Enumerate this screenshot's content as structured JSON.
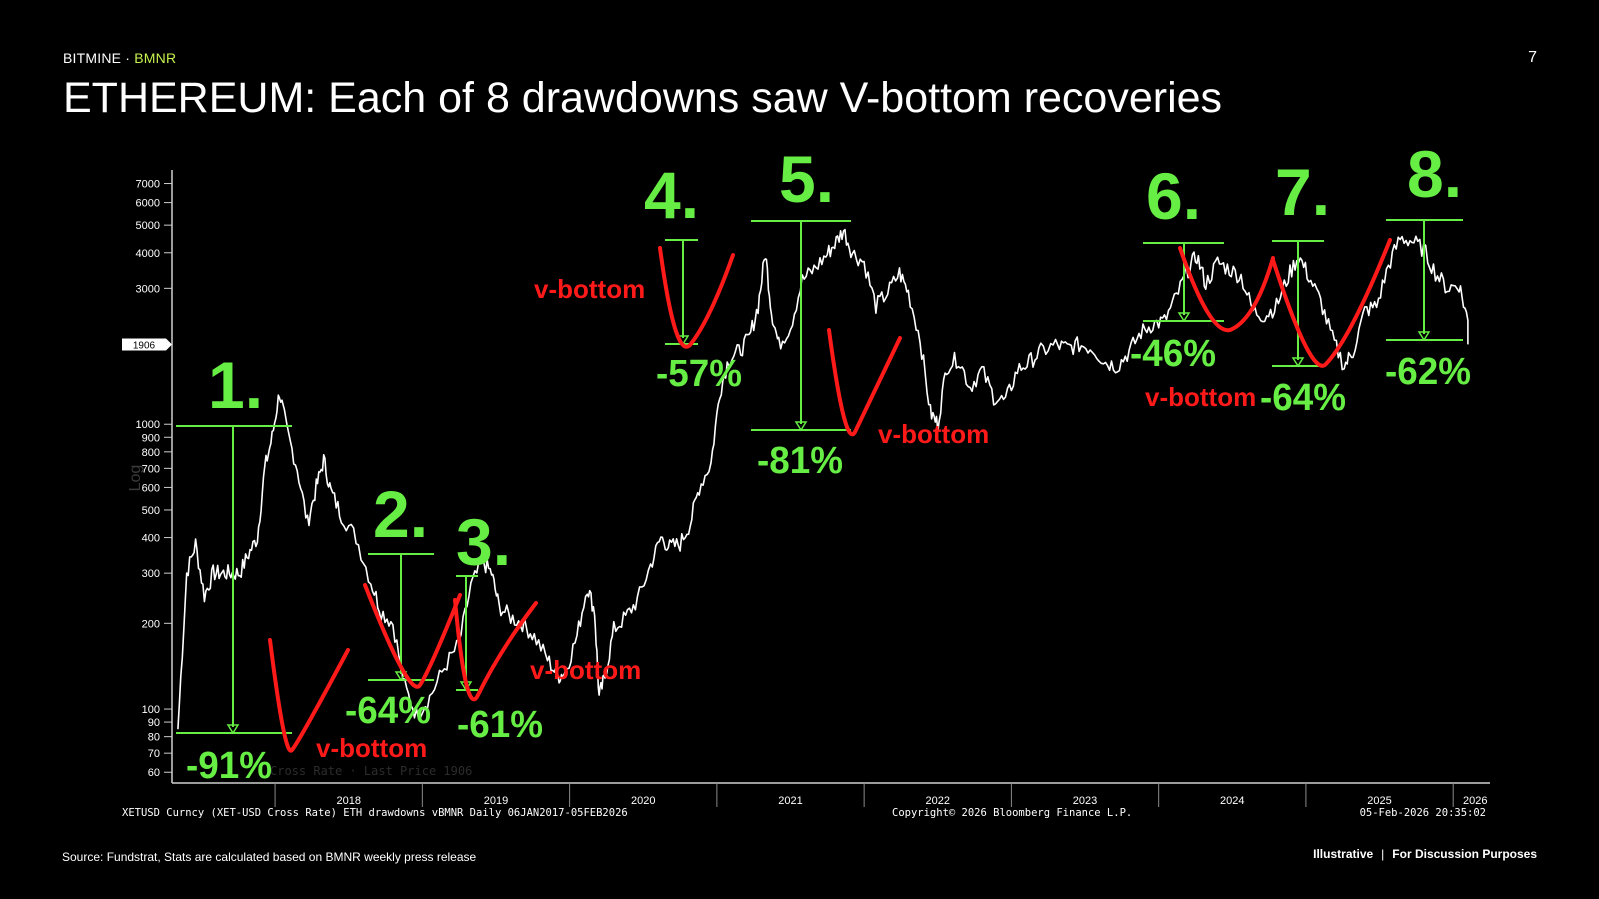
{
  "header": {
    "brand": "BITMINE",
    "separator": "·",
    "ticker": "BMNR",
    "page_number": "7",
    "title": "ETHEREUM: Each of 8 drawdowns saw V-bottom recoveries"
  },
  "footer": {
    "source": "Source: Fundstrat, Stats are calculated based on BMNR weekly press release",
    "illustrative": "Illustrative",
    "divider": "|",
    "discussion": "For Discussion Purposes"
  },
  "chart_data": {
    "type": "line",
    "scale": "log",
    "ylim": [
      55,
      7500
    ],
    "xlim": [
      2017.3,
      2026.25
    ],
    "yticks": [
      60,
      70,
      80,
      90,
      100,
      200,
      300,
      400,
      500,
      600,
      700,
      800,
      900,
      1000,
      3000,
      4000,
      5000,
      6000,
      7000
    ],
    "xticks": [
      "2018",
      "2019",
      "2020",
      "2021",
      "2022",
      "2023",
      "2024",
      "2025",
      "2026"
    ],
    "last_price_label": "1906",
    "ylabel_vertical": "Log",
    "bloomberg_line1_left": "XETUSD Curncy (XET-USD Cross Rate) ETH drawdowns vBMNR Daily 06JAN2017-05FEB2026",
    "bloomberg_line1_right": "Copyright© 2026 Bloomberg Finance L.P.",
    "bloomberg_line2_right": "05-Feb-2026 20:35:02",
    "legend_faint": "Cross Rate · Last Price 1906",
    "series": [
      {
        "color": "#ffffff",
        "points": [
          [
            2017.34,
            85
          ],
          [
            2017.4,
            300
          ],
          [
            2017.46,
            380
          ],
          [
            2017.52,
            250
          ],
          [
            2017.58,
            300
          ],
          [
            2017.64,
            300
          ],
          [
            2017.7,
            300
          ],
          [
            2017.76,
            300
          ],
          [
            2017.82,
            350
          ],
          [
            2017.88,
            400
          ],
          [
            2017.93,
            700
          ],
          [
            2017.98,
            900
          ],
          [
            2018.03,
            1300
          ],
          [
            2018.08,
            950
          ],
          [
            2018.15,
            700
          ],
          [
            2018.22,
            450
          ],
          [
            2018.28,
            600
          ],
          [
            2018.33,
            750
          ],
          [
            2018.38,
            580
          ],
          [
            2018.45,
            480
          ],
          [
            2018.55,
            400
          ],
          [
            2018.65,
            280
          ],
          [
            2018.72,
            220
          ],
          [
            2018.8,
            200
          ],
          [
            2018.88,
            120
          ],
          [
            2018.96,
            95
          ],
          [
            2019.05,
            110
          ],
          [
            2019.15,
            140
          ],
          [
            2019.25,
            170
          ],
          [
            2019.33,
            270
          ],
          [
            2019.41,
            330
          ],
          [
            2019.47,
            300
          ],
          [
            2019.52,
            230
          ],
          [
            2019.6,
            210
          ],
          [
            2019.68,
            200
          ],
          [
            2019.76,
            180
          ],
          [
            2019.85,
            150
          ],
          [
            2019.92,
            130
          ],
          [
            2019.97,
            135
          ],
          [
            2020.05,
            180
          ],
          [
            2020.12,
            270
          ],
          [
            2020.17,
            220
          ],
          [
            2020.2,
            110
          ],
          [
            2020.24,
            130
          ],
          [
            2020.3,
            190
          ],
          [
            2020.38,
            210
          ],
          [
            2020.46,
            240
          ],
          [
            2020.55,
            320
          ],
          [
            2020.62,
            400
          ],
          [
            2020.68,
            370
          ],
          [
            2020.75,
            380
          ],
          [
            2020.82,
            450
          ],
          [
            2020.88,
            600
          ],
          [
            2020.96,
            730
          ],
          [
            2021.02,
            1300
          ],
          [
            2021.08,
            1700
          ],
          [
            2021.15,
            1800
          ],
          [
            2021.22,
            2000
          ],
          [
            2021.28,
            2600
          ],
          [
            2021.33,
            4000
          ],
          [
            2021.37,
            2500
          ],
          [
            2021.42,
            1900
          ],
          [
            2021.5,
            2200
          ],
          [
            2021.58,
            3200
          ],
          [
            2021.66,
            3500
          ],
          [
            2021.74,
            3900
          ],
          [
            2021.8,
            4300
          ],
          [
            2021.86,
            4800
          ],
          [
            2021.92,
            4000
          ],
          [
            2022.0,
            3700
          ],
          [
            2022.08,
            2600
          ],
          [
            2022.16,
            2900
          ],
          [
            2022.24,
            3400
          ],
          [
            2022.3,
            2900
          ],
          [
            2022.38,
            2000
          ],
          [
            2022.45,
            1100
          ],
          [
            2022.5,
            1000
          ],
          [
            2022.56,
            1600
          ],
          [
            2022.64,
            1700
          ],
          [
            2022.72,
            1350
          ],
          [
            2022.8,
            1550
          ],
          [
            2022.88,
            1250
          ],
          [
            2022.96,
            1200
          ],
          [
            2023.04,
            1550
          ],
          [
            2023.12,
            1650
          ],
          [
            2023.2,
            1800
          ],
          [
            2023.3,
            1900
          ],
          [
            2023.38,
            1850
          ],
          [
            2023.46,
            1900
          ],
          [
            2023.55,
            1850
          ],
          [
            2023.64,
            1650
          ],
          [
            2023.72,
            1600
          ],
          [
            2023.8,
            1800
          ],
          [
            2023.88,
            2100
          ],
          [
            2023.96,
            2250
          ],
          [
            2024.04,
            2300
          ],
          [
            2024.12,
            2800
          ],
          [
            2024.2,
            3500
          ],
          [
            2024.26,
            3900
          ],
          [
            2024.32,
            3100
          ],
          [
            2024.4,
            3700
          ],
          [
            2024.48,
            3500
          ],
          [
            2024.56,
            3300
          ],
          [
            2024.64,
            2500
          ],
          [
            2024.72,
            2400
          ],
          [
            2024.8,
            2600
          ],
          [
            2024.88,
            3300
          ],
          [
            2024.95,
            3900
          ],
          [
            2025.02,
            3300
          ],
          [
            2025.1,
            2700
          ],
          [
            2025.18,
            2000
          ],
          [
            2025.26,
            1600
          ],
          [
            2025.32,
            1800
          ],
          [
            2025.4,
            2500
          ],
          [
            2025.48,
            2600
          ],
          [
            2025.56,
            3600
          ],
          [
            2025.64,
            4500
          ],
          [
            2025.72,
            4400
          ],
          [
            2025.8,
            4100
          ],
          [
            2025.88,
            3400
          ],
          [
            2025.96,
            3000
          ],
          [
            2026.04,
            3100
          ],
          [
            2026.1,
            2300
          ],
          [
            2026.1,
            1906
          ]
        ]
      }
    ],
    "drawdowns": [
      {
        "number": "1.",
        "pct": "-91%",
        "vbottom": "v-bottom"
      },
      {
        "number": "2.",
        "pct": "-64%",
        "vbottom": ""
      },
      {
        "number": "3.",
        "pct": "-61%",
        "vbottom": "v-bottom"
      },
      {
        "number": "4.",
        "pct": "-57%",
        "vbottom": "v-bottom"
      },
      {
        "number": "5.",
        "pct": "-81%",
        "vbottom": "v-bottom"
      },
      {
        "number": "6.",
        "pct": "-46%",
        "vbottom": "v-bottom"
      },
      {
        "number": "7.",
        "pct": "-64%",
        "vbottom": ""
      },
      {
        "number": "8.",
        "pct": "-62%",
        "vbottom": ""
      }
    ]
  },
  "colors": {
    "accent_green": "#66ee44",
    "v_red": "#ff1a1a",
    "ticker_yellow": "#c6f24e"
  }
}
